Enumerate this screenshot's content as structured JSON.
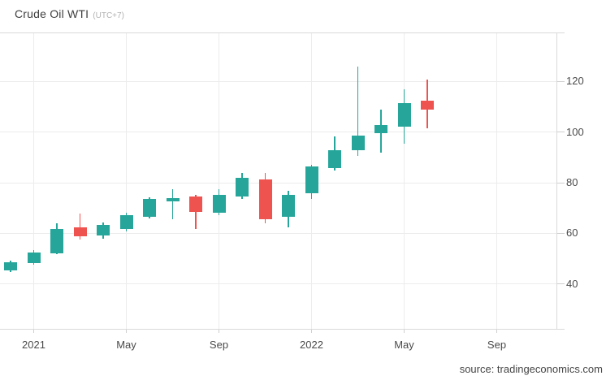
{
  "header": {
    "title": "Crude Oil WTI",
    "timezone": "(UTC+7)"
  },
  "footer": {
    "source": "source: tradingeconomics.com"
  },
  "colors": {
    "up": "#26a69a",
    "down": "#ef5350",
    "grid": "#ececec",
    "axis_line": "#d9d9d9",
    "tick": "#cfcfcf",
    "label_text": "#4a4a4a",
    "title_text": "#3f3f3f",
    "muted_text": "#b2b2b2"
  },
  "chart_data": {
    "type": "candlestick",
    "title": "Crude Oil WTI",
    "timezone_note": "(UTC+7)",
    "xlabel": "",
    "ylabel": "",
    "grid": true,
    "legend": "none",
    "y_axis_side": "right",
    "ylim": [
      22.3,
      139.4
    ],
    "y_ticks": [
      120,
      100,
      80,
      60,
      40
    ],
    "x_tick_labels": [
      {
        "label": "2021",
        "candle_index": 1
      },
      {
        "label": "May",
        "candle_index": 5
      },
      {
        "label": "Sep",
        "candle_index": 9
      },
      {
        "label": "2022",
        "candle_index": 13
      },
      {
        "label": "May",
        "candle_index": 17
      },
      {
        "label": "Sep",
        "candle_index": 21
      }
    ],
    "candles": [
      {
        "x": "2020-12",
        "open": 45.4,
        "high": 49.3,
        "low": 44.8,
        "close": 48.6
      },
      {
        "x": "2021-01",
        "open": 48.2,
        "high": 53.3,
        "low": 47.6,
        "close": 52.4
      },
      {
        "x": "2021-02",
        "open": 52.1,
        "high": 63.9,
        "low": 51.8,
        "close": 61.7
      },
      {
        "x": "2021-03",
        "open": 62.3,
        "high": 67.8,
        "low": 57.6,
        "close": 58.8
      },
      {
        "x": "2021-04",
        "open": 59.1,
        "high": 64.3,
        "low": 57.9,
        "close": 63.3
      },
      {
        "x": "2021-05",
        "open": 61.7,
        "high": 68.1,
        "low": 60.7,
        "close": 67.2
      },
      {
        "x": "2021-06",
        "open": 66.6,
        "high": 74.3,
        "low": 65.9,
        "close": 73.6
      },
      {
        "x": "2021-07",
        "open": 72.6,
        "high": 77.5,
        "low": 65.6,
        "close": 73.9
      },
      {
        "x": "2021-08",
        "open": 74.6,
        "high": 75.2,
        "low": 61.8,
        "close": 68.5
      },
      {
        "x": "2021-09",
        "open": 68.2,
        "high": 77.4,
        "low": 67.2,
        "close": 75.2
      },
      {
        "x": "2021-10",
        "open": 74.5,
        "high": 83.9,
        "low": 73.7,
        "close": 82.0
      },
      {
        "x": "2021-11",
        "open": 81.3,
        "high": 83.8,
        "low": 64.0,
        "close": 65.6
      },
      {
        "x": "2021-12",
        "open": 66.6,
        "high": 76.8,
        "low": 62.4,
        "close": 75.2
      },
      {
        "x": "2022-01",
        "open": 75.9,
        "high": 87.2,
        "low": 73.7,
        "close": 86.5
      },
      {
        "x": "2022-02",
        "open": 85.8,
        "high": 98.4,
        "low": 84.9,
        "close": 92.9
      },
      {
        "x": "2022-03",
        "open": 92.9,
        "high": 126.0,
        "low": 90.6,
        "close": 98.7
      },
      {
        "x": "2022-04",
        "open": 99.6,
        "high": 108.9,
        "low": 91.9,
        "close": 102.8
      },
      {
        "x": "2022-05",
        "open": 102.2,
        "high": 117.0,
        "low": 95.5,
        "close": 111.5
      },
      {
        "x": "2022-06",
        "open": 112.5,
        "high": 120.8,
        "low": 101.6,
        "close": 108.9
      }
    ]
  }
}
